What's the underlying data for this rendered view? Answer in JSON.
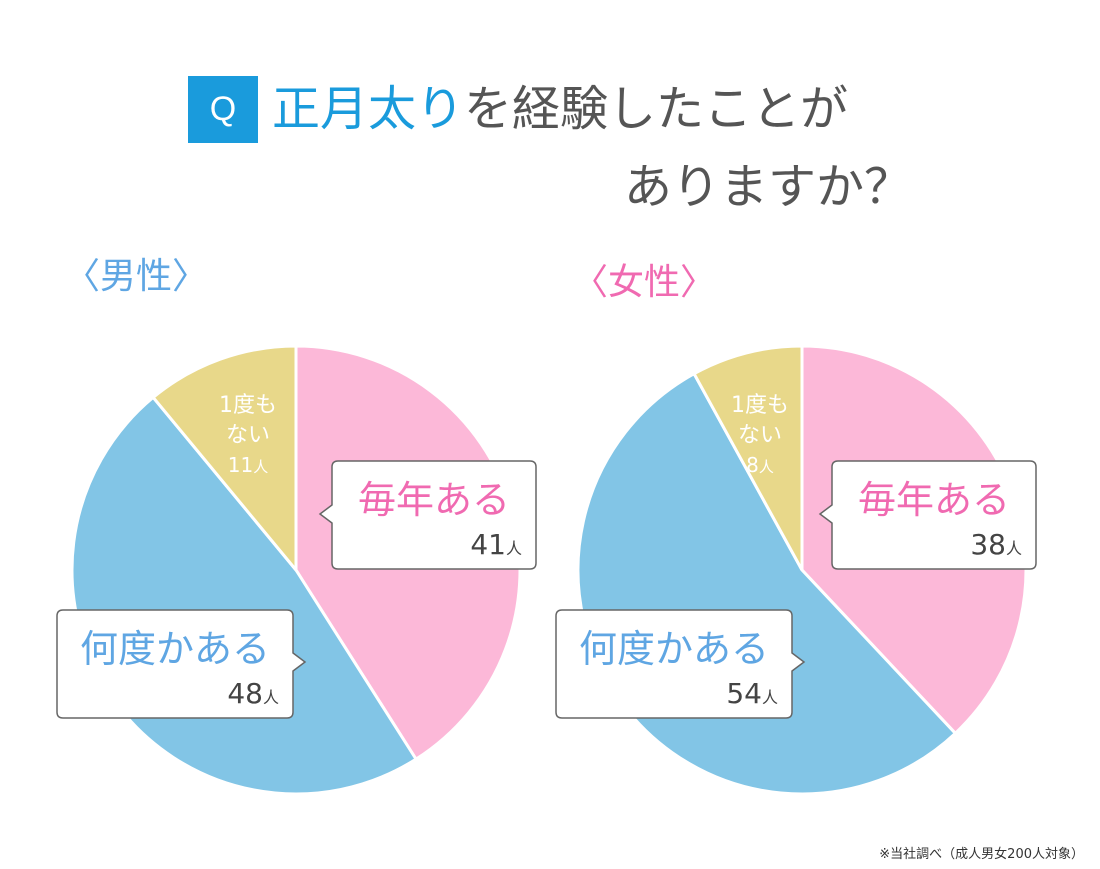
{
  "header": {
    "q_badge": "Q",
    "title_highlight": "正月太り",
    "title_rest": "を経験したことが",
    "title_line2": "ありますか？"
  },
  "colors": {
    "accent_blue": "#1a9bdc",
    "pink": "#fcb8d8",
    "blue": "#82c5e6",
    "yellow": "#e8d88a",
    "pink_text": "#f06ab1",
    "blue_text": "#5fa6e3"
  },
  "chart_data": [
    {
      "type": "pie",
      "title": "〈男性〉",
      "unit": "人",
      "slices": [
        {
          "label": "毎年ある",
          "value": 41,
          "color": "#fcb8d8"
        },
        {
          "label": "何度かある",
          "value": 48,
          "color": "#82c5e6"
        },
        {
          "label": "1度もない",
          "value": 11,
          "color": "#e8d88a"
        }
      ]
    },
    {
      "type": "pie",
      "title": "〈女性〉",
      "unit": "人",
      "slices": [
        {
          "label": "毎年ある",
          "value": 38,
          "color": "#fcb8d8"
        },
        {
          "label": "何度かある",
          "value": 54,
          "color": "#82c5e6"
        },
        {
          "label": "1度もない",
          "value": 8,
          "color": "#e8d88a"
        }
      ]
    }
  ],
  "footnote": "※当社調べ（成人男女200人対象）"
}
